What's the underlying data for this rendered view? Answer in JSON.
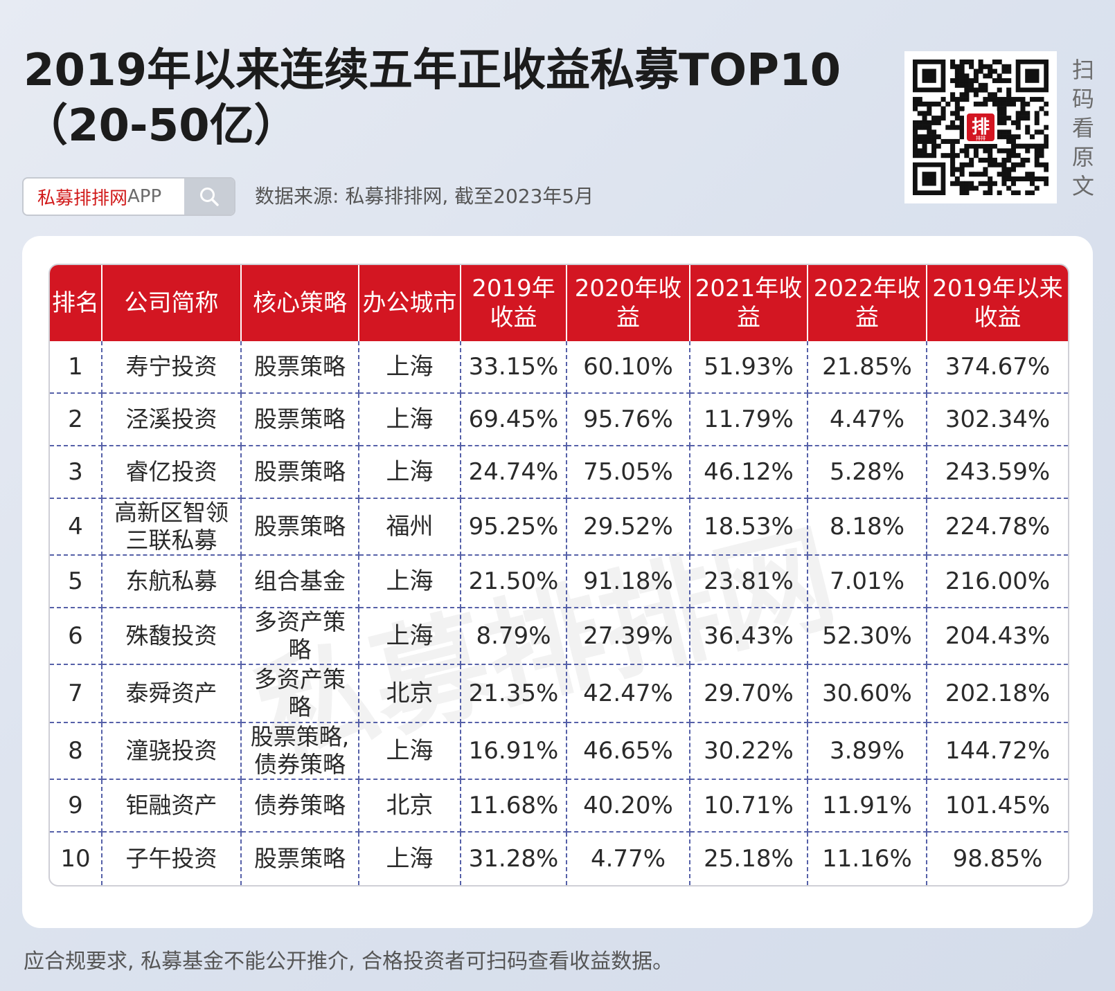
{
  "title": {
    "line1": "2019年以来连续五年正收益私募TOP10",
    "line2": "（20-50亿）"
  },
  "search": {
    "app_name_red": "私募排排网",
    "app_name_suffix": "APP",
    "icon": "search-icon"
  },
  "source_text": "数据来源: 私募排排网, 截至2023年5月",
  "qr": {
    "icon": "qr-code",
    "badge_char": "排",
    "badge_sub": "排排",
    "caption": [
      "扫",
      "码",
      "看",
      "原",
      "文"
    ]
  },
  "watermark": "私募排排网",
  "table": {
    "headers": [
      "排名",
      "公司简称",
      "核心策略",
      "办公城市",
      "2019年收益",
      "2020年收益",
      "2021年收益",
      "2022年收益",
      "2019年以来收益"
    ],
    "rows": [
      [
        "1",
        "寿宁投资",
        "股票策略",
        "上海",
        "33.15%",
        "60.10%",
        "51.93%",
        "21.85%",
        "374.67%"
      ],
      [
        "2",
        "泾溪投资",
        "股票策略",
        "上海",
        "69.45%",
        "95.76%",
        "11.79%",
        "4.47%",
        "302.34%"
      ],
      [
        "3",
        "睿亿投资",
        "股票策略",
        "上海",
        "24.74%",
        "75.05%",
        "46.12%",
        "5.28%",
        "243.59%"
      ],
      [
        "4",
        "高新区智领三联私募",
        "股票策略",
        "福州",
        "95.25%",
        "29.52%",
        "18.53%",
        "8.18%",
        "224.78%"
      ],
      [
        "5",
        "东航私募",
        "组合基金",
        "上海",
        "21.50%",
        "91.18%",
        "23.81%",
        "7.01%",
        "216.00%"
      ],
      [
        "6",
        "殊馥投资",
        "多资产策略",
        "上海",
        "8.79%",
        "27.39%",
        "36.43%",
        "52.30%",
        "204.43%"
      ],
      [
        "7",
        "泰舜资产",
        "多资产策略",
        "北京",
        "21.35%",
        "42.47%",
        "29.70%",
        "30.60%",
        "202.18%"
      ],
      [
        "8",
        "潼骁投资",
        "股票策略,债券策略",
        "上海",
        "16.91%",
        "46.65%",
        "30.22%",
        "3.89%",
        "144.72%"
      ],
      [
        "9",
        "钜融资产",
        "债券策略",
        "北京",
        "11.68%",
        "40.20%",
        "10.71%",
        "11.91%",
        "101.45%"
      ],
      [
        "10",
        "子午投资",
        "股票策略",
        "上海",
        "31.28%",
        "4.77%",
        "25.18%",
        "11.16%",
        "98.85%"
      ]
    ]
  },
  "footer": "应合规要求, 私募基金不能公开推介, 合格投资者可扫码查看收益数据。",
  "colors": {
    "header_red": "#d31622",
    "brand_red": "#d11a1a",
    "dashed_border": "#5560a8"
  }
}
